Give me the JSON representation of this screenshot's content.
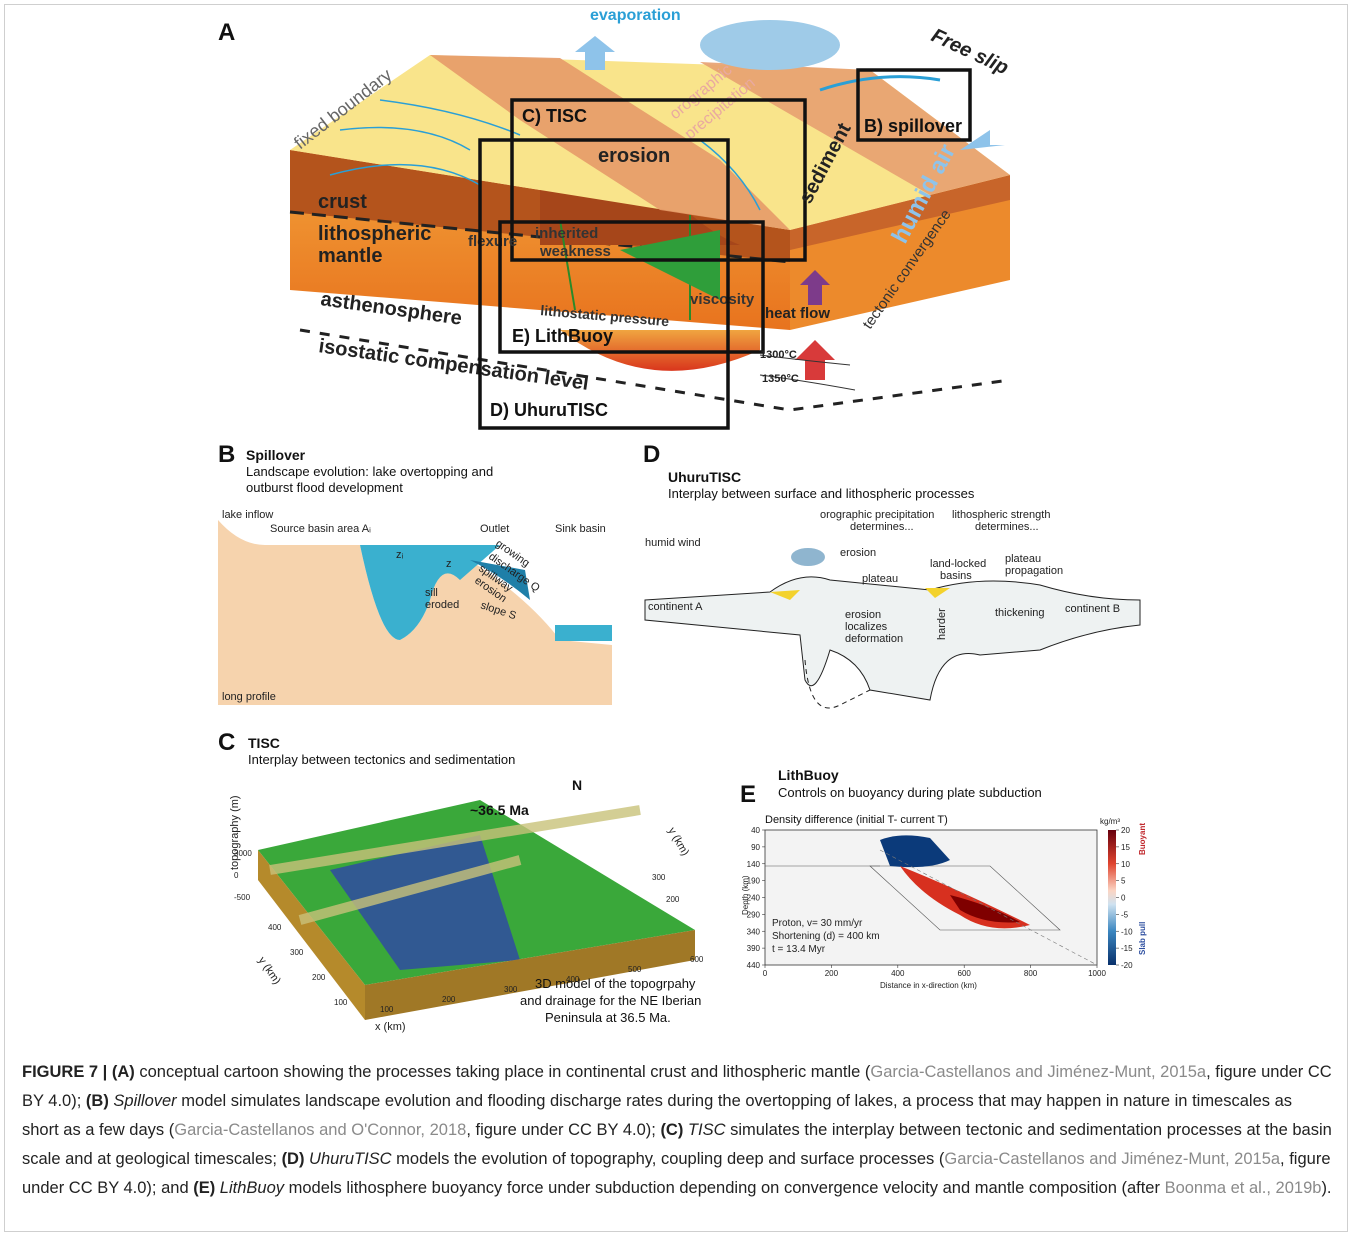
{
  "panel_a": {
    "letter": "A",
    "labels": [
      "evaporation",
      "Free slip",
      "fixed boundary",
      "orographic",
      "precipitation",
      "C) TISC",
      "B) spillover",
      "erosion",
      "sediment",
      "humid air",
      "crust",
      "lithospheric",
      "mantle",
      "flexure",
      "inherited",
      "weakness",
      "viscosity",
      "heat flow",
      "tectonic convergence",
      "asthenosphere",
      "lithostatic pressure",
      "E) LithBuoy",
      "1300°C",
      "1350°C",
      "isostatic compensation level",
      "D) UhuruTISC"
    ]
  },
  "panel_b": {
    "letter": "B",
    "title": "Spillover",
    "subtitle": [
      "Landscape evolution: lake overtopping and",
      "outburst flood development"
    ],
    "labels": [
      "lake inflow",
      "Source basin area Aᵢ",
      "Outlet",
      "Sink basin",
      "growing",
      "discharge Q",
      "spillway",
      "erosion",
      "zᵢ",
      "z",
      "sill",
      "eroded",
      "slope S",
      "long profile"
    ]
  },
  "panel_d": {
    "letter": "D",
    "title": "UhuruTISC",
    "subtitle": "Interplay between surface and lithospheric processes",
    "labels": [
      "humid wind",
      "orographic precipitation",
      "determines...",
      "lithospheric strength",
      "determines...",
      "erosion",
      "land-locked",
      "basins",
      "plateau",
      "plateau",
      "propagation",
      "continent A",
      "continent B",
      "erosion",
      "localizes",
      "deformation",
      "harder",
      "thickening"
    ]
  },
  "panel_c": {
    "letter": "C",
    "title": "TISC",
    "subtitle": "Interplay between tectonics and sedimentation",
    "labels": [
      "~36.5 Ma",
      "N",
      "topography (m)",
      "y (km)",
      "x (km)",
      "y (km)"
    ],
    "z_ticks": [
      "3000",
      "0",
      "-500"
    ],
    "y_ticks": [
      "400",
      "300",
      "200",
      "100"
    ],
    "x_ticks": [
      "100",
      "200",
      "300",
      "400",
      "500",
      "600"
    ],
    "back_ticks": [
      "300",
      "200"
    ],
    "caption": [
      "3D model of the topogrpahy",
      "and drainage for the NE Iberian",
      "Peninsula at 36.5 Ma."
    ]
  },
  "panel_e": {
    "letter": "E",
    "title": "LithBuoy",
    "subtitle": "Controls on buoyancy during plate subduction",
    "plot_title": "Density difference (initial T- current T)",
    "y_label": "Depth (km)",
    "x_label": "Distance in x-direction (km)",
    "yticks": [
      40,
      90,
      140,
      190,
      240,
      290,
      340,
      390,
      440
    ],
    "xticks": [
      0,
      200,
      400,
      600,
      800,
      1000
    ],
    "colorbar_unit": "kg/m³",
    "colorbar_ticks": [
      20,
      15,
      10,
      5,
      0,
      -5,
      -10,
      -15,
      -20
    ],
    "colorbar_labels": [
      "Buoyant",
      "Slab pull"
    ],
    "notes": [
      "Proton, v= 30 mm/yr",
      "Shortening (d) = 400 km",
      "t = 13.4 Myr"
    ]
  },
  "caption": [
    "FIGURE 7 | (A)",
    " conceptual cartoon showing the processes taking place in continental crust and lithospheric mantle (",
    "Garcia-Castellanos and Jiménez-Munt, 2015a",
    ", figure under CC BY 4.0); ",
    "(B)",
    " Spillover",
    " model simulates landscape evolution and flooding discharge rates during the overtopping of lakes, a process that may happen in nature in timescales as short as a few days (",
    "Garcia-Castellanos and O'Connor, 2018",
    ", figure under CC BY 4.0); ",
    "(C)",
    " TISC",
    " simulates the interplay between tectonic and sedimentation processes at the basin scale and at geological timescales; ",
    "(D)",
    " UhuruTISC",
    " models the evolution of topography, coupling deep and surface processes (",
    "Garcia-Castellanos and Jiménez-Munt, 2015a",
    ", figure under CC BY 4.0); and ",
    "(E)",
    " LithBuoy",
    " models lithosphere buoyancy force under subduction depending on convergence velocity and mantle composition (after ",
    "Boonma et al., 2019b",
    ")."
  ]
}
